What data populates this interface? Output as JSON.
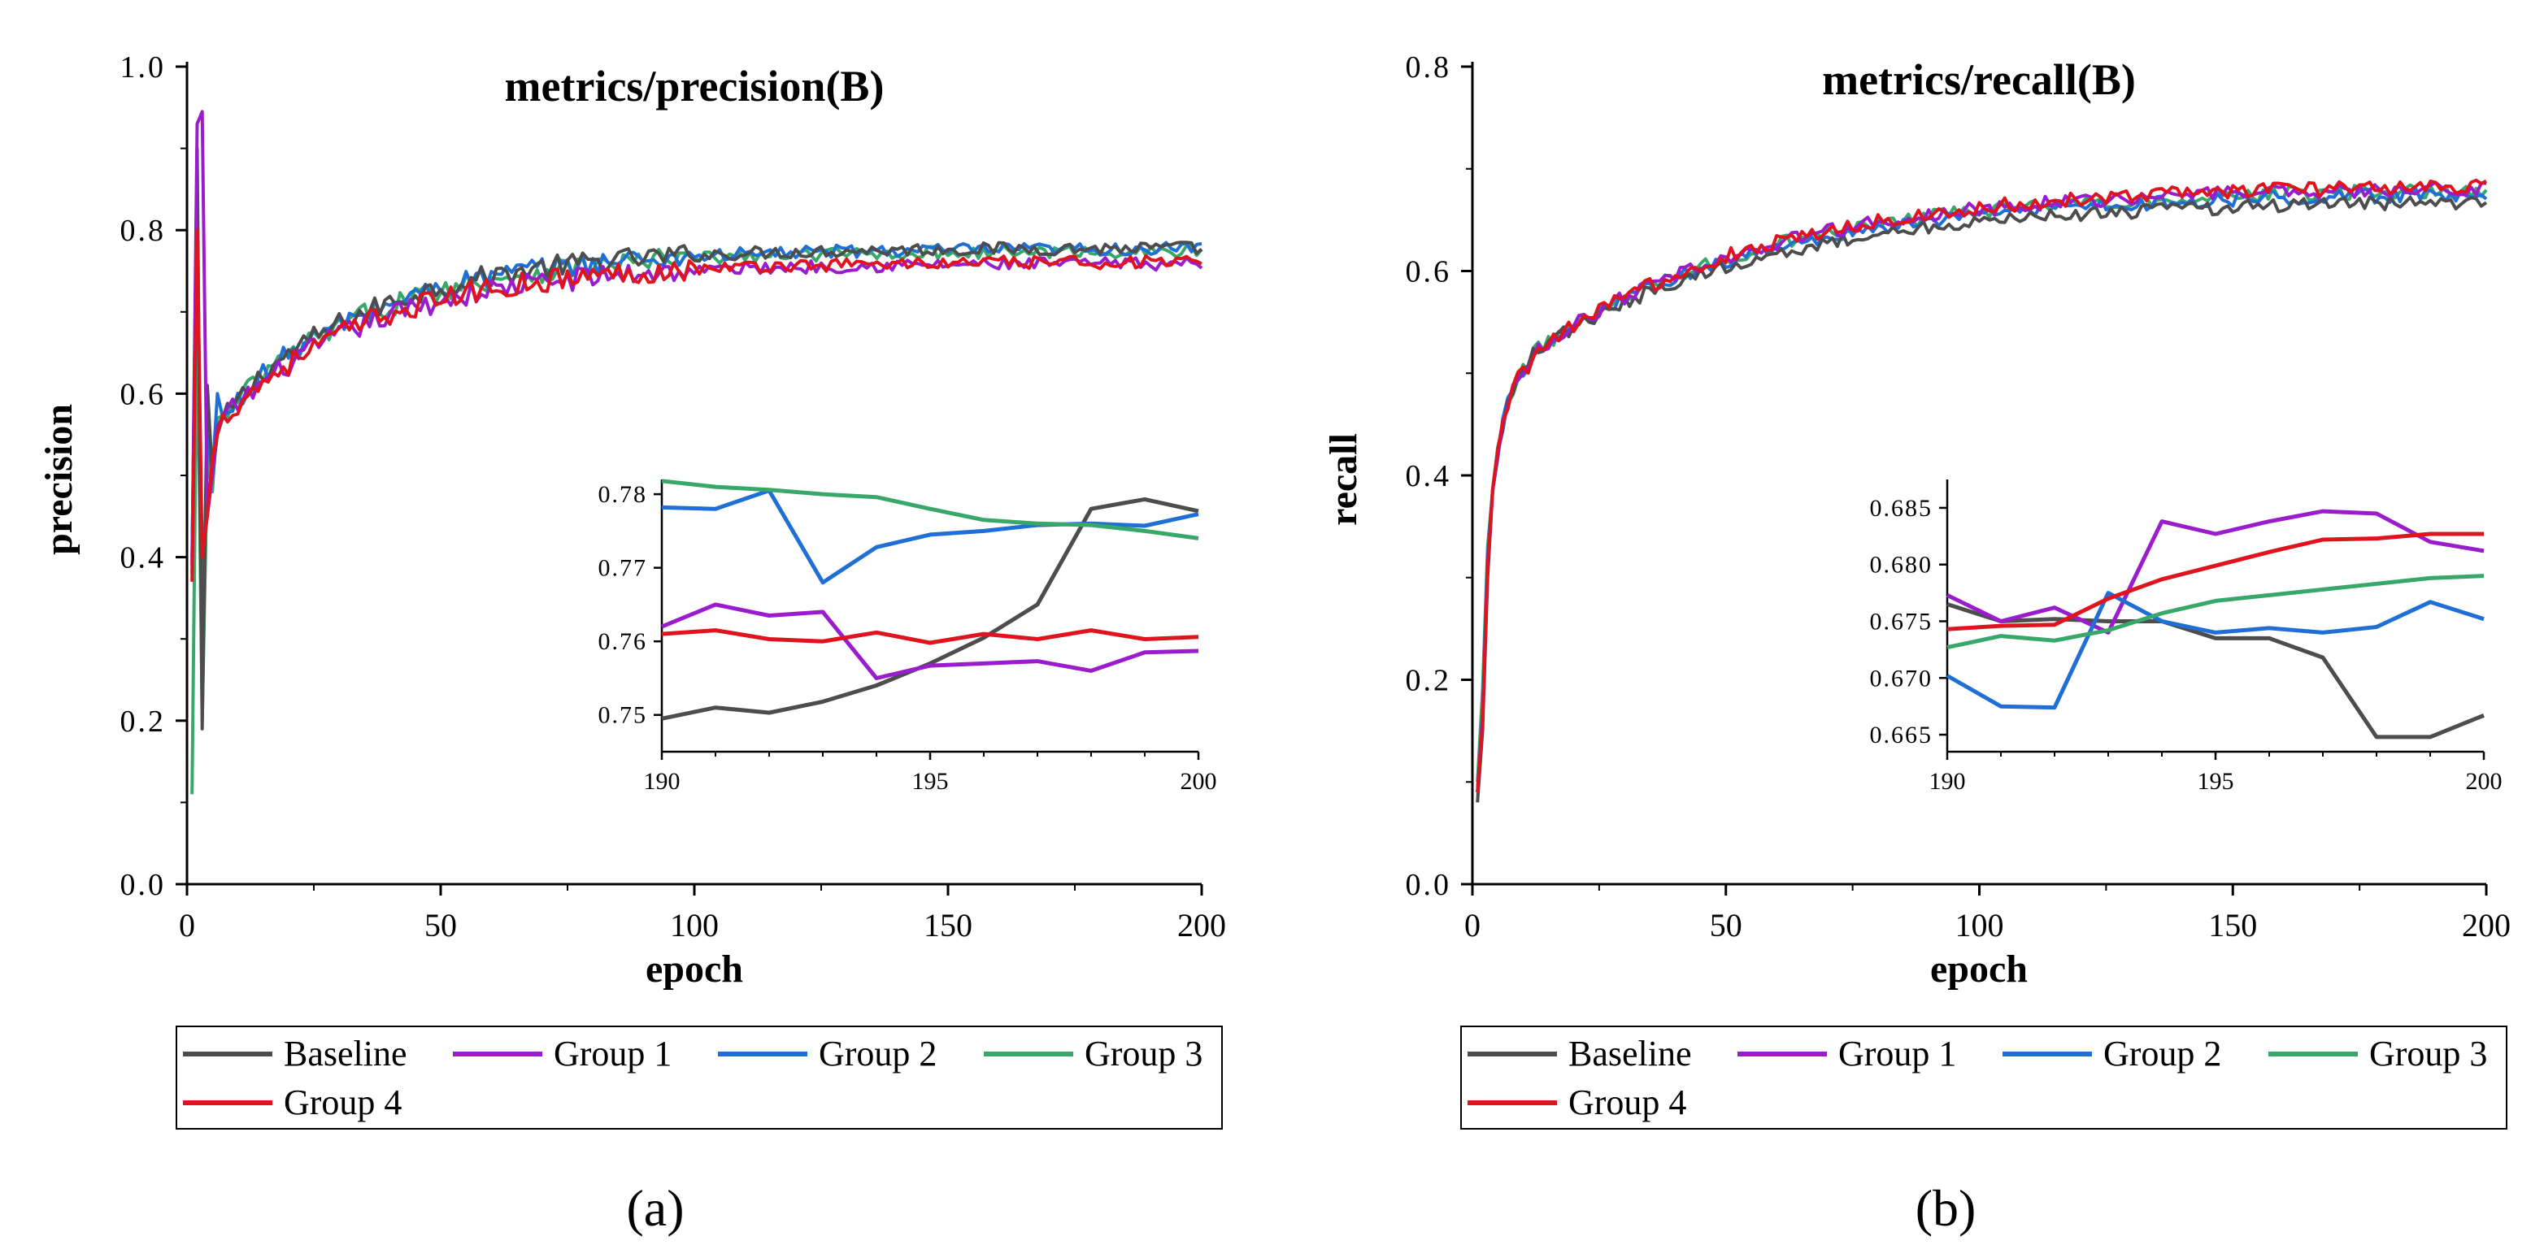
{
  "colors": {
    "Baseline": "#4d4d4d",
    "Group 1": "#9a1ccc",
    "Group 2": "#1f6fd6",
    "Group 3": "#38a86a",
    "Group 4": "#e0141e"
  },
  "chart_data": [
    {
      "panel_label": "(a)",
      "type": "line",
      "title": "metrics/precision(B)",
      "xlabel": "epoch",
      "ylabel": "precision",
      "xlim": [
        0,
        200
      ],
      "ylim": [
        0,
        1.0
      ],
      "xticks": [
        "0",
        "50",
        "100",
        "150",
        "200"
      ],
      "yticks": [
        "0.0",
        "0.2",
        "0.4",
        "0.6",
        "0.8",
        "1.0"
      ],
      "legend": [
        "Baseline",
        "Group 1",
        "Group 2",
        "Group 3",
        "Group 4"
      ],
      "legend_position": "below",
      "series": [
        {
          "name": "Baseline",
          "final": 0.778,
          "early": [
            [
              1,
              0.38
            ],
            [
              2,
              0.9
            ],
            [
              3,
              0.19
            ],
            [
              4,
              0.61
            ],
            [
              5,
              0.5
            ],
            [
              6,
              0.55
            ]
          ]
        },
        {
          "name": "Group 1",
          "final": 0.759,
          "early": [
            [
              1,
              0.39
            ],
            [
              2,
              0.93
            ],
            [
              3,
              0.945
            ],
            [
              4,
              0.45
            ],
            [
              5,
              0.5
            ],
            [
              6,
              0.56
            ]
          ]
        },
        {
          "name": "Group 2",
          "final": 0.777,
          "early": [
            [
              1,
              0.4
            ],
            [
              2,
              0.85
            ],
            [
              3,
              0.3
            ],
            [
              4,
              0.55
            ],
            [
              5,
              0.5
            ],
            [
              6,
              0.6
            ]
          ]
        },
        {
          "name": "Group 3",
          "final": 0.774,
          "early": [
            [
              1,
              0.11
            ],
            [
              2,
              0.7
            ],
            [
              3,
              0.2
            ],
            [
              4,
              0.52
            ],
            [
              5,
              0.48
            ],
            [
              6,
              0.57
            ]
          ]
        },
        {
          "name": "Group 4",
          "final": 0.761,
          "early": [
            [
              1,
              0.37
            ],
            [
              2,
              0.8
            ],
            [
              3,
              0.4
            ],
            [
              4,
              0.45
            ],
            [
              5,
              0.52
            ],
            [
              6,
              0.55
            ]
          ]
        }
      ],
      "inset": {
        "xlim": [
          190,
          200
        ],
        "ylim": [
          0.745,
          0.782
        ],
        "xticks": [
          "190",
          "195",
          "200"
        ],
        "yticks": [
          "0.75",
          "0.76",
          "0.77",
          "0.78"
        ],
        "x": [
          190,
          191,
          192,
          193,
          194,
          195,
          196,
          197,
          198,
          199,
          200
        ],
        "series": [
          {
            "name": "Baseline",
            "values": [
              0.7495,
              0.751,
              0.7503,
              0.7518,
              0.754,
              0.757,
              0.7605,
              0.765,
              0.778,
              0.7793,
              0.7777
            ]
          },
          {
            "name": "Group 1",
            "values": [
              0.762,
              0.765,
              0.7635,
              0.764,
              0.755,
              0.7567,
              0.757,
              0.7573,
              0.756,
              0.7585,
              0.7587
            ]
          },
          {
            "name": "Group 2",
            "values": [
              0.7782,
              0.778,
              0.7805,
              0.768,
              0.7728,
              0.7745,
              0.775,
              0.7758,
              0.776,
              0.7757,
              0.7773
            ]
          },
          {
            "name": "Group 3",
            "values": [
              0.7818,
              0.781,
              0.7806,
              0.78,
              0.7796,
              0.778,
              0.7765,
              0.776,
              0.7758,
              0.775,
              0.774
            ]
          },
          {
            "name": "Group 4",
            "values": [
              0.761,
              0.7615,
              0.7603,
              0.76,
              0.7612,
              0.7598,
              0.761,
              0.7603,
              0.7615,
              0.7603,
              0.7606
            ]
          }
        ]
      }
    },
    {
      "panel_label": "(b)",
      "type": "line",
      "title": "metrics/recall(B)",
      "xlabel": "epoch",
      "ylabel": "recall",
      "xlim": [
        0,
        200
      ],
      "ylim": [
        0,
        0.8
      ],
      "xticks": [
        "0",
        "50",
        "100",
        "150",
        "200"
      ],
      "yticks": [
        "0.0",
        "0.2",
        "0.4",
        "0.6",
        "0.8"
      ],
      "legend": [
        "Baseline",
        "Group 1",
        "Group 2",
        "Group 3",
        "Group 4"
      ],
      "legend_position": "below",
      "series": [
        {
          "name": "Baseline",
          "final": 0.667,
          "early": [
            [
              1,
              0.08
            ],
            [
              2,
              0.15
            ],
            [
              3,
              0.3
            ]
          ]
        },
        {
          "name": "Group 1",
          "final": 0.681,
          "early": [
            [
              1,
              0.09
            ],
            [
              2,
              0.16
            ],
            [
              3,
              0.31
            ]
          ]
        },
        {
          "name": "Group 2",
          "final": 0.675,
          "early": [
            [
              1,
              0.09
            ],
            [
              2,
              0.17
            ],
            [
              3,
              0.32
            ]
          ]
        },
        {
          "name": "Group 3",
          "final": 0.679,
          "early": [
            [
              1,
              0.1
            ],
            [
              2,
              0.19
            ],
            [
              3,
              0.33
            ]
          ]
        },
        {
          "name": "Group 4",
          "final": 0.683,
          "early": [
            [
              1,
              0.09
            ],
            [
              2,
              0.16
            ],
            [
              3,
              0.31
            ]
          ]
        }
      ],
      "inset": {
        "xlim": [
          190,
          200
        ],
        "ylim": [
          0.6635,
          0.6875
        ],
        "xticks": [
          "190",
          "195",
          "200"
        ],
        "yticks": [
          "0.665",
          "0.670",
          "0.675",
          "0.680",
          "0.685"
        ],
        "x": [
          190,
          191,
          192,
          193,
          194,
          195,
          196,
          197,
          198,
          199,
          200
        ],
        "series": [
          {
            "name": "Baseline",
            "values": [
              0.6765,
              0.675,
              0.6752,
              0.675,
              0.675,
              0.6735,
              0.6735,
              0.6718,
              0.6648,
              0.6648,
              0.6667
            ]
          },
          {
            "name": "Group 1",
            "values": [
              0.6773,
              0.675,
              0.6762,
              0.674,
              0.6838,
              0.6827,
              0.6838,
              0.6847,
              0.6845,
              0.682,
              0.6812
            ]
          },
          {
            "name": "Group 2",
            "values": [
              0.6702,
              0.6675,
              0.6674,
              0.6775,
              0.675,
              0.674,
              0.6744,
              0.674,
              0.6745,
              0.6767,
              0.6752
            ]
          },
          {
            "name": "Group 3",
            "values": [
              0.6727,
              0.6737,
              0.6733,
              0.6742,
              0.6757,
              0.6768,
              0.6773,
              0.6778,
              0.6783,
              0.6788,
              0.679
            ]
          },
          {
            "name": "Group 4",
            "values": [
              0.6743,
              0.6746,
              0.6747,
              0.677,
              0.6787,
              0.6799,
              0.6811,
              0.6822,
              0.6823,
              0.6827,
              0.6827
            ]
          }
        ]
      }
    }
  ]
}
